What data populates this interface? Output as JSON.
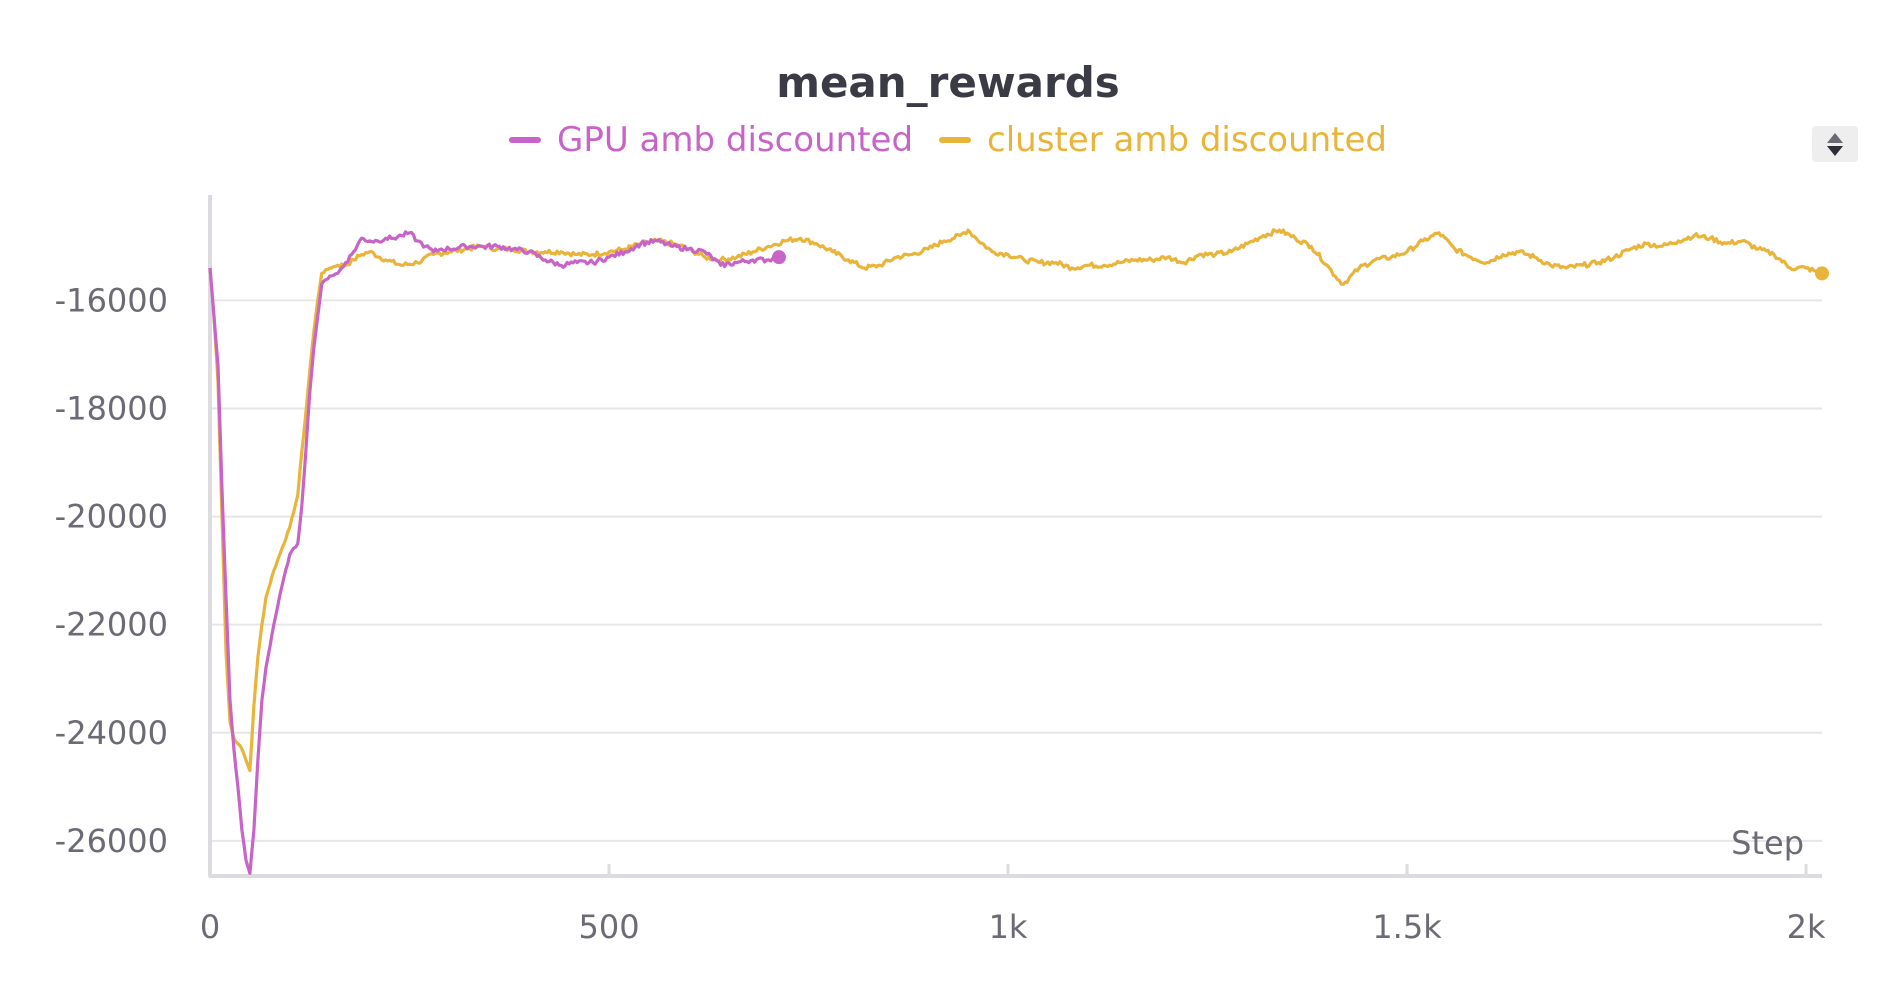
{
  "chart_data": {
    "type": "line",
    "title": "mean_rewards",
    "xlabel": "Step",
    "ylabel": "",
    "xlim": [
      0,
      2020
    ],
    "ylim": [
      -26650,
      -14050
    ],
    "x_ticks": [
      {
        "value": 0,
        "label": "0"
      },
      {
        "value": 500,
        "label": "500"
      },
      {
        "value": 1000,
        "label": "1k"
      },
      {
        "value": 1500,
        "label": "1.5k"
      },
      {
        "value": 2000,
        "label": "2k"
      }
    ],
    "y_ticks": [
      {
        "value": -16000,
        "label": "-16000"
      },
      {
        "value": -18000,
        "label": "-18000"
      },
      {
        "value": -20000,
        "label": "-20000"
      },
      {
        "value": -22000,
        "label": "-22000"
      },
      {
        "value": -24000,
        "label": "-24000"
      },
      {
        "value": -26000,
        "label": "-26000"
      }
    ],
    "grid": "horizontal",
    "legend_position": "top-center",
    "series": [
      {
        "name": "GPU amb discounted",
        "color": "#c864c8",
        "x": [
          0,
          5,
          10,
          15,
          20,
          25,
          30,
          35,
          40,
          45,
          50,
          55,
          60,
          65,
          70,
          80,
          90,
          100,
          110,
          115,
          120,
          125,
          130,
          135,
          140,
          150,
          160,
          170,
          180,
          190,
          200,
          210,
          220,
          230,
          240,
          250,
          260,
          270,
          280,
          290,
          300,
          320,
          340,
          360,
          380,
          400,
          420,
          440,
          460,
          480,
          500,
          520,
          540,
          560,
          580,
          600,
          620,
          640,
          660,
          680,
          700,
          713
        ],
        "y": [
          -15400,
          -16300,
          -17200,
          -19500,
          -21500,
          -23400,
          -24300,
          -25000,
          -25800,
          -26350,
          -26600,
          -25800,
          -24500,
          -23400,
          -22800,
          -22000,
          -21300,
          -20700,
          -20500,
          -19800,
          -18800,
          -17700,
          -16900,
          -16300,
          -15700,
          -15550,
          -15500,
          -15300,
          -15100,
          -14850,
          -14900,
          -14900,
          -14850,
          -14850,
          -14800,
          -14750,
          -14900,
          -15000,
          -15100,
          -15050,
          -15050,
          -15000,
          -15000,
          -15000,
          -15050,
          -15100,
          -15250,
          -15350,
          -15300,
          -15300,
          -15200,
          -15100,
          -14950,
          -14900,
          -15000,
          -15050,
          -15100,
          -15350,
          -15300,
          -15250,
          -15250,
          -15200
        ]
      },
      {
        "name": "cluster amb discounted",
        "color": "#e9b43a",
        "x": [
          0,
          5,
          10,
          15,
          20,
          25,
          30,
          35,
          40,
          45,
          50,
          55,
          60,
          65,
          70,
          80,
          90,
          100,
          110,
          115,
          120,
          125,
          130,
          135,
          140,
          150,
          160,
          170,
          180,
          190,
          200,
          220,
          240,
          260,
          280,
          300,
          320,
          340,
          360,
          380,
          400,
          420,
          440,
          460,
          480,
          500,
          520,
          540,
          560,
          580,
          600,
          620,
          640,
          660,
          680,
          700,
          720,
          740,
          760,
          780,
          800,
          820,
          840,
          860,
          880,
          900,
          920,
          940,
          950,
          960,
          980,
          1000,
          1020,
          1040,
          1060,
          1080,
          1100,
          1120,
          1140,
          1160,
          1180,
          1200,
          1220,
          1240,
          1260,
          1280,
          1300,
          1320,
          1340,
          1360,
          1380,
          1400,
          1410,
          1420,
          1440,
          1460,
          1480,
          1500,
          1520,
          1540,
          1560,
          1580,
          1600,
          1620,
          1640,
          1660,
          1680,
          1700,
          1720,
          1740,
          1760,
          1780,
          1800,
          1820,
          1840,
          1860,
          1880,
          1900,
          1920,
          1940,
          1960,
          1980,
          2000,
          2010,
          2020
        ],
        "y": [
          -15400,
          -16300,
          -17500,
          -20000,
          -22500,
          -23800,
          -24100,
          -24200,
          -24300,
          -24500,
          -24700,
          -23500,
          -22600,
          -22000,
          -21500,
          -21000,
          -20600,
          -20200,
          -19600,
          -18800,
          -18100,
          -17300,
          -16600,
          -16000,
          -15500,
          -15400,
          -15350,
          -15350,
          -15250,
          -15150,
          -15100,
          -15250,
          -15350,
          -15300,
          -15150,
          -15100,
          -15050,
          -15000,
          -15050,
          -15050,
          -15100,
          -15100,
          -15100,
          -15150,
          -15150,
          -15100,
          -15050,
          -14950,
          -14900,
          -14950,
          -15050,
          -15200,
          -15250,
          -15200,
          -15100,
          -15000,
          -14900,
          -14850,
          -14950,
          -15100,
          -15250,
          -15400,
          -15350,
          -15200,
          -15150,
          -15050,
          -14900,
          -14800,
          -14700,
          -14850,
          -15100,
          -15150,
          -15250,
          -15300,
          -15300,
          -15400,
          -15350,
          -15350,
          -15300,
          -15250,
          -15250,
          -15200,
          -15300,
          -15150,
          -15150,
          -15100,
          -14950,
          -14800,
          -14700,
          -14850,
          -15000,
          -15350,
          -15550,
          -15700,
          -15400,
          -15250,
          -15200,
          -15100,
          -14900,
          -14750,
          -15050,
          -15200,
          -15300,
          -15150,
          -15100,
          -15200,
          -15350,
          -15400,
          -15350,
          -15300,
          -15200,
          -15050,
          -14950,
          -15000,
          -14900,
          -14800,
          -14850,
          -14950,
          -14900,
          -15050,
          -15150,
          -15400,
          -15400,
          -15450,
          -15500
        ]
      }
    ]
  }
}
